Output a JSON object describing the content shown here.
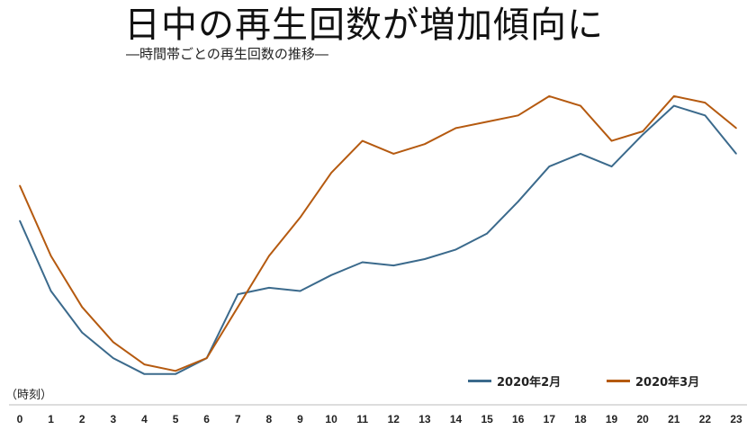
{
  "header": {
    "title": "日中の再生回数が増加傾向に",
    "subtitle": "―時間帯ごとの再生回数の推移―"
  },
  "axis": {
    "unit_label": "（時刻）"
  },
  "colors": {
    "feb": "#3b6a8c",
    "mar": "#b55a10",
    "axis": "#bbbbbb"
  },
  "legend": {
    "feb_label": "2020年2月",
    "mar_label": "2020年3月",
    "placement": "bottom-right"
  },
  "chart_data": {
    "type": "line",
    "title": "日中の再生回数が増加傾向に",
    "subtitle": "―時間帯ごとの再生回数の推移―",
    "xlabel": "（時刻）",
    "ylabel": "",
    "grid": false,
    "y_axis_shown": false,
    "ylim": [
      0,
      100
    ],
    "x": [
      0,
      1,
      2,
      3,
      4,
      5,
      6,
      7,
      8,
      9,
      10,
      11,
      12,
      13,
      14,
      15,
      16,
      17,
      18,
      19,
      20,
      21,
      22,
      23
    ],
    "series": [
      {
        "name": "2020年2月",
        "color": "#3b6a8c",
        "values": [
          52,
          30,
          17,
          9,
          4,
          4,
          9,
          29,
          31,
          30,
          35,
          39,
          38,
          40,
          43,
          48,
          58,
          69,
          73,
          69,
          79,
          88,
          85,
          73
        ]
      },
      {
        "name": "2020年3月",
        "color": "#b55a10",
        "values": [
          63,
          41,
          25,
          14,
          7,
          5,
          9,
          25,
          41,
          53,
          67,
          77,
          73,
          76,
          81,
          83,
          85,
          91,
          88,
          77,
          80,
          91,
          89,
          81
        ]
      }
    ]
  }
}
